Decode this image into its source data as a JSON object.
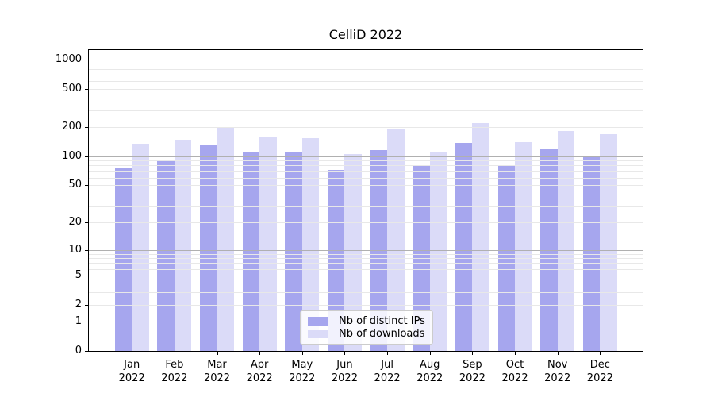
{
  "chart_data": {
    "type": "bar",
    "title": "CelliD 2022",
    "y_scale": "log1p",
    "grid": true,
    "legend_position": "lower-center",
    "ylim": [
      0,
      1250
    ],
    "y_ticks": [
      0,
      1,
      2,
      5,
      10,
      20,
      50,
      100,
      200,
      500,
      1000
    ],
    "categories": [
      "Jan 2022",
      "Feb 2022",
      "Mar 2022",
      "Apr 2022",
      "May 2022",
      "Jun 2022",
      "Jul 2022",
      "Aug 2022",
      "Sep 2022",
      "Oct 2022",
      "Nov 2022",
      "Dec 2022"
    ],
    "month_labels": [
      "Jan",
      "Feb",
      "Mar",
      "Apr",
      "May",
      "Jun",
      "Jul",
      "Aug",
      "Sep",
      "Oct",
      "Nov",
      "Dec"
    ],
    "year_label": "2022",
    "series": [
      {
        "id": "distinct-ips",
        "name": "Nb of distinct IPs",
        "color": "#a6a6ee",
        "values": [
          76,
          91,
          133,
          111,
          111,
          72,
          116,
          79,
          138,
          81,
          117,
          100
        ]
      },
      {
        "id": "downloads",
        "name": "Nb of downloads",
        "color": "#dbdbf8",
        "values": [
          135,
          148,
          196,
          159,
          154,
          105,
          194,
          111,
          222,
          140,
          182,
          170
        ]
      }
    ]
  }
}
